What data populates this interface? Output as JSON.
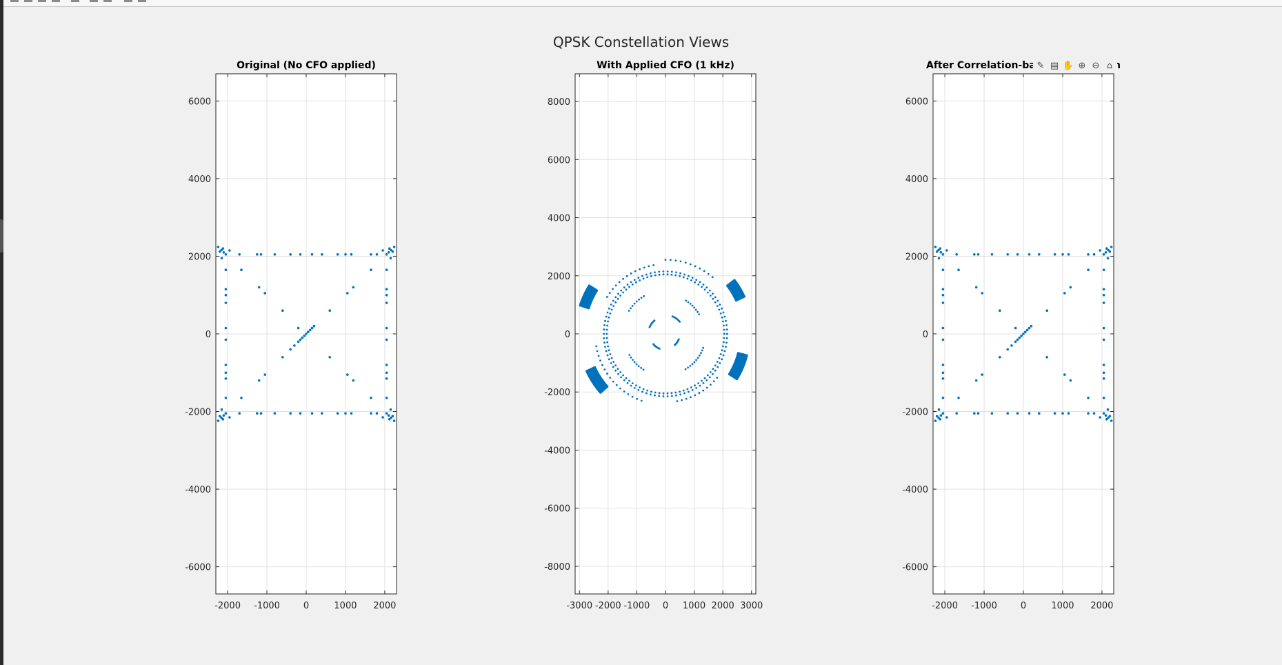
{
  "figure": {
    "title": "QPSK Constellation Views",
    "background": "#f0f0f0",
    "marker_color": "#0072bd"
  },
  "axes_toolbar": {
    "icons": [
      "brush-icon",
      "datatip-icon",
      "pan-icon",
      "zoom-in-icon",
      "zoom-out-icon",
      "home-icon"
    ]
  },
  "chart_data": [
    {
      "type": "scatter",
      "title": "Original (No CFO applied)",
      "xlim": [
        -2300,
        2300
      ],
      "ylim": [
        -6700,
        6700
      ],
      "xticks": [
        -2000,
        -1000,
        0,
        1000,
        2000
      ],
      "yticks": [
        -6000,
        -4000,
        -2000,
        0,
        2000,
        4000,
        6000
      ],
      "grid": true,
      "points": [
        [
          -2048,
          2048
        ],
        [
          2048,
          2048
        ],
        [
          -2048,
          -2048
        ],
        [
          2048,
          -2048
        ],
        [
          -2240,
          2240
        ],
        [
          -2160,
          2160
        ],
        [
          -2100,
          2100
        ],
        [
          -1950,
          2150
        ],
        [
          -2150,
          1950
        ],
        [
          -2200,
          2120
        ],
        [
          -2120,
          2200
        ],
        [
          2240,
          2240
        ],
        [
          2160,
          2160
        ],
        [
          2100,
          2100
        ],
        [
          1950,
          2150
        ],
        [
          2150,
          1950
        ],
        [
          2200,
          2120
        ],
        [
          2120,
          2200
        ],
        [
          -2240,
          -2240
        ],
        [
          -2160,
          -2160
        ],
        [
          -2100,
          -2100
        ],
        [
          -1950,
          -2150
        ],
        [
          -2150,
          -1950
        ],
        [
          -2200,
          -2120
        ],
        [
          -2120,
          -2200
        ],
        [
          2240,
          -2240
        ],
        [
          2160,
          -2160
        ],
        [
          2100,
          -2100
        ],
        [
          1950,
          -2150
        ],
        [
          2150,
          -1950
        ],
        [
          2200,
          -2120
        ],
        [
          2120,
          -2200
        ],
        [
          -1700,
          2048
        ],
        [
          -1250,
          2048
        ],
        [
          -1150,
          2048
        ],
        [
          -800,
          2048
        ],
        [
          -400,
          2048
        ],
        [
          -150,
          2048
        ],
        [
          150,
          2048
        ],
        [
          400,
          2048
        ],
        [
          800,
          2048
        ],
        [
          1000,
          2048
        ],
        [
          1150,
          2048
        ],
        [
          1650,
          2048
        ],
        [
          1800,
          2048
        ],
        [
          -1700,
          -2048
        ],
        [
          -1250,
          -2048
        ],
        [
          -1150,
          -2048
        ],
        [
          -800,
          -2048
        ],
        [
          -400,
          -2048
        ],
        [
          -150,
          -2048
        ],
        [
          150,
          -2048
        ],
        [
          400,
          -2048
        ],
        [
          800,
          -2048
        ],
        [
          1000,
          -2048
        ],
        [
          1150,
          -2048
        ],
        [
          1650,
          -2048
        ],
        [
          1800,
          -2048
        ],
        [
          -2048,
          1650
        ],
        [
          -2048,
          1150
        ],
        [
          -2048,
          1000
        ],
        [
          -2048,
          800
        ],
        [
          -2048,
          150
        ],
        [
          -2048,
          -150
        ],
        [
          -2048,
          -800
        ],
        [
          -2048,
          -1000
        ],
        [
          -2048,
          -1150
        ],
        [
          -2048,
          -1650
        ],
        [
          2048,
          1650
        ],
        [
          2048,
          1150
        ],
        [
          2048,
          1000
        ],
        [
          2048,
          800
        ],
        [
          2048,
          150
        ],
        [
          2048,
          -150
        ],
        [
          2048,
          -800
        ],
        [
          2048,
          -1000
        ],
        [
          2048,
          -1150
        ],
        [
          2048,
          -1650
        ],
        [
          -1650,
          1650
        ],
        [
          -1200,
          1200
        ],
        [
          -1050,
          1050
        ],
        [
          -600,
          600
        ],
        [
          1650,
          1650
        ],
        [
          1200,
          1200
        ],
        [
          1050,
          1050
        ],
        [
          600,
          600
        ],
        [
          -1650,
          -1650
        ],
        [
          -1200,
          -1200
        ],
        [
          -1050,
          -1050
        ],
        [
          -600,
          -600
        ],
        [
          1650,
          -1650
        ],
        [
          1200,
          -1200
        ],
        [
          1050,
          -1050
        ],
        [
          600,
          -600
        ],
        [
          -200,
          150
        ],
        [
          -150,
          -150
        ],
        [
          -100,
          -100
        ],
        [
          -50,
          -50
        ],
        [
          0,
          0
        ],
        [
          50,
          50
        ],
        [
          100,
          100
        ],
        [
          150,
          150
        ],
        [
          200,
          200
        ],
        [
          -400,
          -400
        ],
        [
          -300,
          -300
        ],
        [
          -200,
          -200
        ]
      ]
    },
    {
      "type": "scatter",
      "title": "With Applied CFO (1 kHz)",
      "xlim": [
        -3150,
        3150
      ],
      "ylim": [
        -8950,
        8950
      ],
      "xticks": [
        -3000,
        -2000,
        -1000,
        0,
        1000,
        2000,
        3000
      ],
      "yticks": [
        -8000,
        -6000,
        -4000,
        -2000,
        0,
        2000,
        4000,
        6000,
        8000
      ],
      "grid": true,
      "pattern": "rotating QPSK symbols: dense arcs near radius ~2900 at 30°, 155°, 210°, 335°; inner ring radius ~2100 with sparse arcs inside",
      "rings": [
        {
          "r": 2900,
          "from": 25,
          "to": 38,
          "dense": true
        },
        {
          "r": 3000,
          "from": 148,
          "to": 162,
          "dense": true
        },
        {
          "r": 2900,
          "from": 205,
          "to": 222,
          "dense": true
        },
        {
          "r": 2800,
          "from": 328,
          "to": 346,
          "dense": true
        },
        {
          "r": 2150,
          "from": 0,
          "to": 360,
          "dense": false
        },
        {
          "r": 2050,
          "from": 0,
          "to": 360,
          "dense": false
        },
        {
          "r": 2400,
          "from": 100,
          "to": 150,
          "dense": false
        },
        {
          "r": 2450,
          "from": 190,
          "to": 250,
          "dense": false
        },
        {
          "r": 2350,
          "from": 280,
          "to": 320,
          "dense": false
        },
        {
          "r": 2550,
          "from": 50,
          "to": 90,
          "dense": false
        },
        {
          "r": 1500,
          "from": 120,
          "to": 150,
          "dense": false
        },
        {
          "r": 1450,
          "from": 210,
          "to": 240,
          "dense": false
        },
        {
          "r": 1400,
          "from": 300,
          "to": 340,
          "dense": false
        },
        {
          "r": 1350,
          "from": 30,
          "to": 60,
          "dense": false
        },
        {
          "r": 650,
          "from": 40,
          "to": 70,
          "dense": false
        },
        {
          "r": 600,
          "from": 130,
          "to": 160,
          "dense": false
        },
        {
          "r": 550,
          "from": 220,
          "to": 250,
          "dense": false
        },
        {
          "r": 500,
          "from": 310,
          "to": 340,
          "dense": false
        }
      ]
    },
    {
      "type": "scatter",
      "title": "After Correlation-bas",
      "title_suffix": "n",
      "xlim": [
        -2300,
        2300
      ],
      "ylim": [
        -6700,
        6700
      ],
      "xticks": [
        -2000,
        -1000,
        0,
        1000,
        2000
      ],
      "yticks": [
        -6000,
        -4000,
        -2000,
        0,
        2000,
        4000,
        6000
      ],
      "grid": true,
      "points": [
        [
          -2048,
          2048
        ],
        [
          2048,
          2048
        ],
        [
          -2048,
          -2048
        ],
        [
          2048,
          -2048
        ],
        [
          -2240,
          2240
        ],
        [
          -2160,
          2160
        ],
        [
          -2100,
          2100
        ],
        [
          -1950,
          2150
        ],
        [
          -2150,
          1950
        ],
        [
          -2200,
          2120
        ],
        [
          -2120,
          2200
        ],
        [
          2240,
          2240
        ],
        [
          2160,
          2160
        ],
        [
          2100,
          2100
        ],
        [
          1950,
          2150
        ],
        [
          2150,
          1950
        ],
        [
          2200,
          2120
        ],
        [
          2120,
          2200
        ],
        [
          -2240,
          -2240
        ],
        [
          -2160,
          -2160
        ],
        [
          -2100,
          -2100
        ],
        [
          -1950,
          -2150
        ],
        [
          -2150,
          -1950
        ],
        [
          -2200,
          -2120
        ],
        [
          -2120,
          -2200
        ],
        [
          2240,
          -2240
        ],
        [
          2160,
          -2160
        ],
        [
          2100,
          -2100
        ],
        [
          1950,
          -2150
        ],
        [
          2150,
          -1950
        ],
        [
          2200,
          -2120
        ],
        [
          2120,
          -2200
        ],
        [
          -1700,
          2048
        ],
        [
          -1250,
          2048
        ],
        [
          -1150,
          2048
        ],
        [
          -800,
          2048
        ],
        [
          -400,
          2048
        ],
        [
          -150,
          2048
        ],
        [
          150,
          2048
        ],
        [
          400,
          2048
        ],
        [
          800,
          2048
        ],
        [
          1000,
          2048
        ],
        [
          1150,
          2048
        ],
        [
          1650,
          2048
        ],
        [
          1800,
          2048
        ],
        [
          -1700,
          -2048
        ],
        [
          -1250,
          -2048
        ],
        [
          -1150,
          -2048
        ],
        [
          -800,
          -2048
        ],
        [
          -400,
          -2048
        ],
        [
          -150,
          -2048
        ],
        [
          150,
          -2048
        ],
        [
          400,
          -2048
        ],
        [
          800,
          -2048
        ],
        [
          1000,
          -2048
        ],
        [
          1150,
          -2048
        ],
        [
          1650,
          -2048
        ],
        [
          1800,
          -2048
        ],
        [
          -2048,
          1650
        ],
        [
          -2048,
          1150
        ],
        [
          -2048,
          1000
        ],
        [
          -2048,
          800
        ],
        [
          -2048,
          150
        ],
        [
          -2048,
          -150
        ],
        [
          -2048,
          -800
        ],
        [
          -2048,
          -1000
        ],
        [
          -2048,
          -1150
        ],
        [
          -2048,
          -1650
        ],
        [
          2048,
          1650
        ],
        [
          2048,
          1150
        ],
        [
          2048,
          1000
        ],
        [
          2048,
          800
        ],
        [
          2048,
          150
        ],
        [
          2048,
          -150
        ],
        [
          2048,
          -800
        ],
        [
          2048,
          -1000
        ],
        [
          2048,
          -1150
        ],
        [
          2048,
          -1650
        ],
        [
          -1650,
          1650
        ],
        [
          -1200,
          1200
        ],
        [
          -1050,
          1050
        ],
        [
          -600,
          600
        ],
        [
          1650,
          1650
        ],
        [
          1200,
          1200
        ],
        [
          1050,
          1050
        ],
        [
          600,
          600
        ],
        [
          -1650,
          -1650
        ],
        [
          -1200,
          -1200
        ],
        [
          -1050,
          -1050
        ],
        [
          -600,
          -600
        ],
        [
          1650,
          -1650
        ],
        [
          1200,
          -1200
        ],
        [
          1050,
          -1050
        ],
        [
          600,
          -600
        ],
        [
          -200,
          150
        ],
        [
          -150,
          -150
        ],
        [
          -100,
          -100
        ],
        [
          -50,
          -50
        ],
        [
          0,
          0
        ],
        [
          50,
          50
        ],
        [
          100,
          100
        ],
        [
          150,
          150
        ],
        [
          200,
          200
        ],
        [
          -400,
          -400
        ],
        [
          -300,
          -300
        ],
        [
          -200,
          -200
        ]
      ]
    }
  ]
}
